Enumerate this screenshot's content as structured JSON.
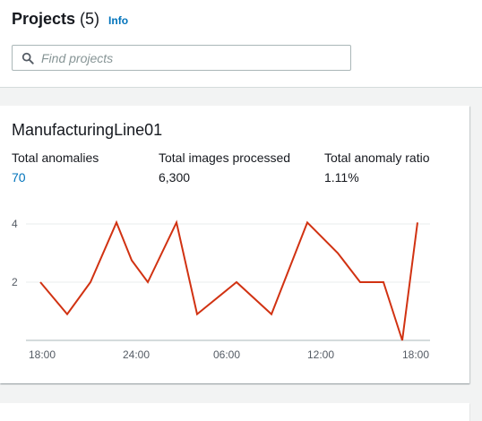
{
  "header": {
    "title": "Projects",
    "count": "(5)",
    "info_label": "Info"
  },
  "search": {
    "placeholder": "Find projects",
    "value": "",
    "icon": "search-icon"
  },
  "project_card": {
    "name": "ManufacturingLine01",
    "metrics": [
      {
        "label": "Total anomalies",
        "value": "70"
      },
      {
        "label": "Total images processed",
        "value": "6,300"
      },
      {
        "label": "Total anomaly ratio",
        "value": "1.11%"
      }
    ],
    "colors": {
      "link": "#0073bb",
      "line": "#d13212",
      "grid": "#eaeded"
    }
  },
  "chart_data": {
    "type": "line",
    "title": "",
    "xlabel": "",
    "ylabel": "",
    "x_ticks": [
      "18:00",
      "24:00",
      "06:00",
      "12:00",
      "18:00"
    ],
    "y_ticks": [
      2,
      4
    ],
    "ylim": [
      0,
      4
    ],
    "grid": true,
    "legend": "none",
    "series": [
      {
        "values": [
          2,
          0.9,
          2,
          4.05,
          2.75,
          2,
          4.05,
          0.9,
          2,
          0.9,
          4.05,
          3,
          2,
          2,
          0,
          4.05
        ]
      }
    ]
  }
}
